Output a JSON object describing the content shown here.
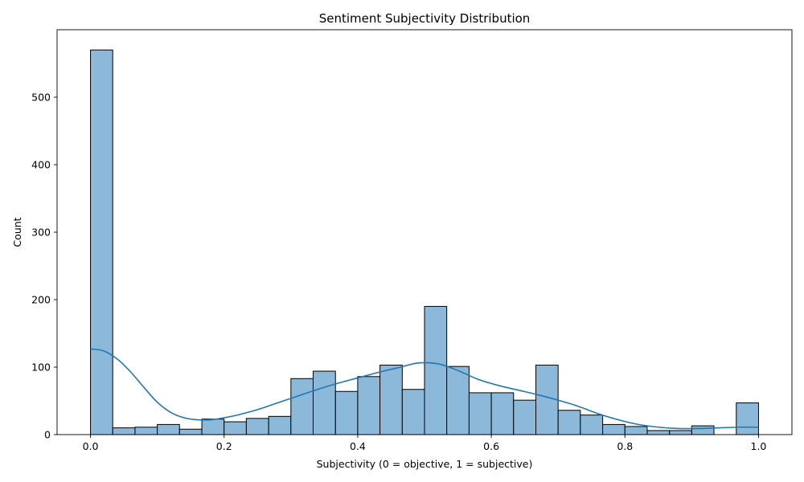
{
  "chart_data": {
    "type": "bar",
    "title": "Sentiment Subjectivity Distribution",
    "xlabel": "Subjectivity (0 = objective, 1 = subjective)",
    "ylabel": "Count",
    "xlim": [
      -0.05,
      1.05
    ],
    "ylim": [
      0,
      600
    ],
    "x_ticks": [
      {
        "value": 0.0,
        "label": "0.0"
      },
      {
        "value": 0.2,
        "label": "0.2"
      },
      {
        "value": 0.4,
        "label": "0.4"
      },
      {
        "value": 0.6,
        "label": "0.6"
      },
      {
        "value": 0.8,
        "label": "0.8"
      },
      {
        "value": 1.0,
        "label": "1.0"
      }
    ],
    "y_ticks": [
      {
        "value": 0,
        "label": "0"
      },
      {
        "value": 100,
        "label": "100"
      },
      {
        "value": 200,
        "label": "200"
      },
      {
        "value": 300,
        "label": "300"
      },
      {
        "value": 400,
        "label": "400"
      },
      {
        "value": 500,
        "label": "500"
      }
    ],
    "bin_edges": [
      0.0,
      0.0333,
      0.0667,
      0.1,
      0.1333,
      0.1667,
      0.2,
      0.2333,
      0.2667,
      0.3,
      0.3333,
      0.3667,
      0.4,
      0.4333,
      0.4667,
      0.5,
      0.5333,
      0.5667,
      0.6,
      0.6333,
      0.6667,
      0.7,
      0.7333,
      0.7667,
      0.8,
      0.8333,
      0.8667,
      0.9,
      0.9333,
      0.9667,
      1.0
    ],
    "counts": [
      570,
      10,
      11,
      15,
      8,
      23,
      19,
      24,
      27,
      83,
      94,
      64,
      86,
      103,
      67,
      190,
      101,
      62,
      62,
      51,
      103,
      36,
      29,
      15,
      12,
      6,
      6,
      13,
      0,
      47
    ],
    "kde": {
      "x": [
        0.0,
        0.02,
        0.04,
        0.06,
        0.08,
        0.1,
        0.12,
        0.14,
        0.16,
        0.18,
        0.2,
        0.22,
        0.25,
        0.28,
        0.31,
        0.34,
        0.37,
        0.4,
        0.43,
        0.46,
        0.49,
        0.52,
        0.55,
        0.58,
        0.61,
        0.64,
        0.67,
        0.7,
        0.73,
        0.76,
        0.79,
        0.82,
        0.85,
        0.88,
        0.91,
        0.94,
        0.97,
        1.0
      ],
      "y": [
        127,
        124,
        112,
        93,
        70,
        48,
        33,
        25,
        22,
        22,
        25,
        29,
        37,
        47,
        57,
        67,
        76,
        84,
        92,
        99,
        106,
        105,
        95,
        82,
        73,
        66,
        59,
        51,
        42,
        31,
        22,
        15,
        11,
        9,
        9,
        10,
        11,
        11
      ]
    },
    "color": "#8cb8da",
    "kde_color": "#1f77b4",
    "grid": false,
    "legend": "none"
  }
}
